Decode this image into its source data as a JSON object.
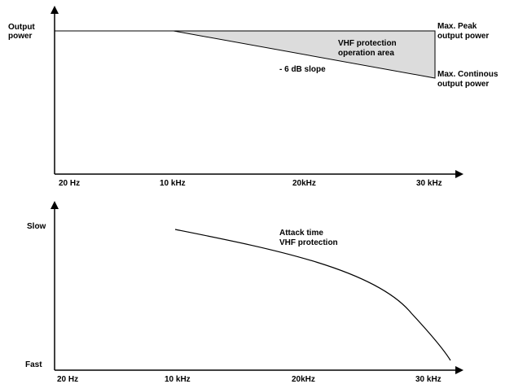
{
  "top_chart": {
    "y_label_line1": "Output",
    "y_label_line2": "power",
    "ticks": [
      "20 Hz",
      "10 kHz",
      "20kHz",
      "30 kHz"
    ],
    "area_label_line1": "VHF protection",
    "area_label_line2": "operation area",
    "slope_label": "- 6 dB slope",
    "peak_label_line1": "Max. Peak",
    "peak_label_line2": "output power",
    "cont_label_line1": "Max. Continous",
    "cont_label_line2": "output power",
    "area_fill": "#dcdcdc"
  },
  "bottom_chart": {
    "y_top_label": "Slow",
    "y_bottom_label": "Fast",
    "ticks": [
      "20 Hz",
      "10 kHz",
      "20kHz",
      "30 kHz"
    ],
    "curve_label_line1": "Attack time",
    "curve_label_line2": "VHF protection"
  }
}
